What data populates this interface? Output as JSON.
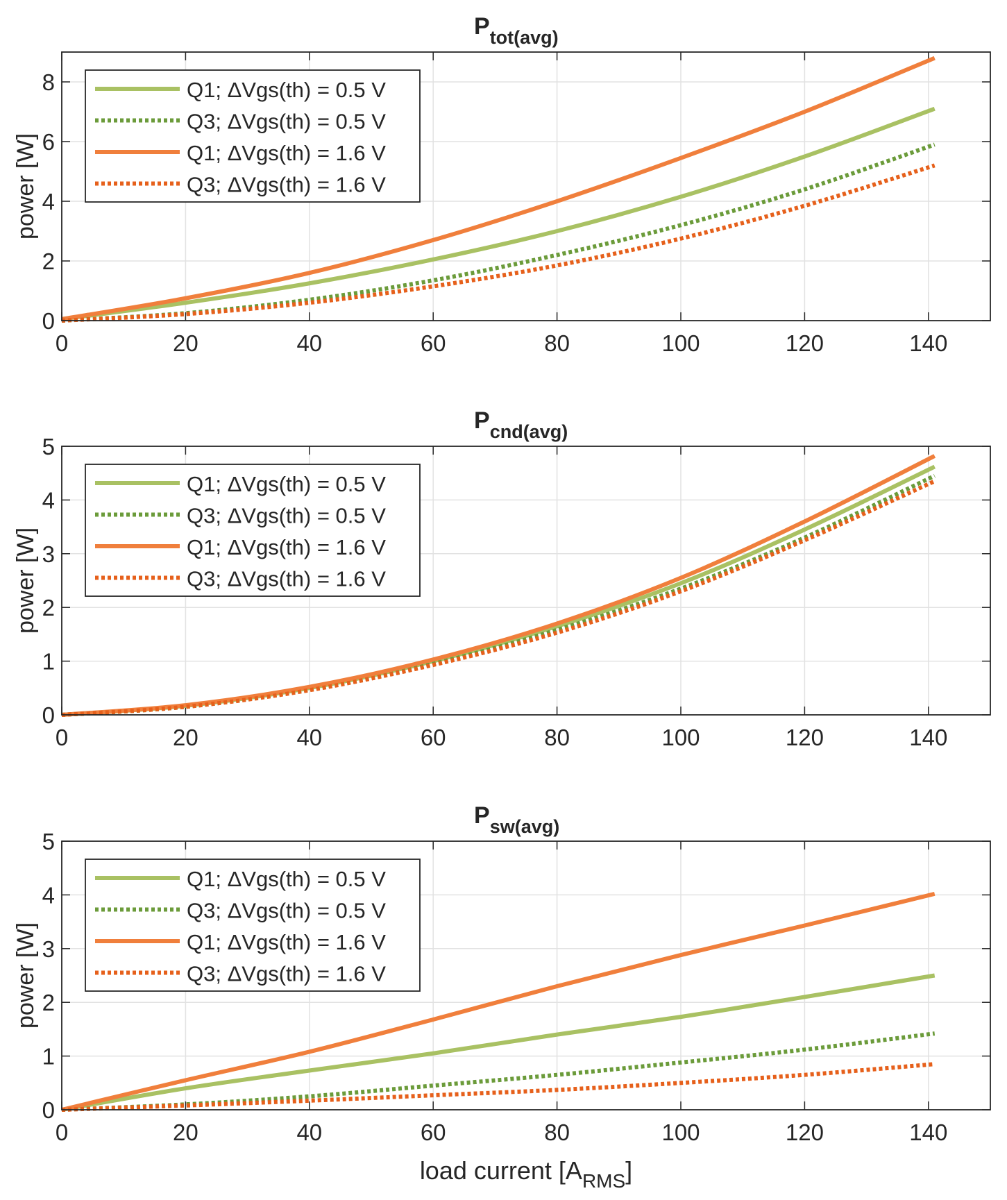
{
  "colors": {
    "q1_05": "#a9c163",
    "q3_05": "#6b9b3a",
    "q1_16": "#f07f3c",
    "q3_16": "#e6601b"
  },
  "chart_data": [
    {
      "type": "line",
      "title": "P",
      "title_sub": "tot(avg)",
      "ylabel": "power [W]",
      "xlabel": "",
      "xlim": [
        0,
        150
      ],
      "ylim": [
        0,
        9
      ],
      "xticks": [
        0,
        20,
        40,
        60,
        80,
        100,
        120,
        140
      ],
      "yticks": [
        0,
        2,
        4,
        6,
        8
      ],
      "grid": true,
      "legend": "top-left",
      "x": [
        0,
        20,
        40,
        60,
        80,
        100,
        120,
        141
      ],
      "series": [
        {
          "name": "Q1; ΔVgs(th) = 0.5 V",
          "style": "solid",
          "color_key": "q1_05",
          "values": [
            0.05,
            0.6,
            1.25,
            2.05,
            3.0,
            4.15,
            5.5,
            7.1
          ]
        },
        {
          "name": "Q3; ΔVgs(th) = 0.5 V",
          "style": "dotted",
          "color_key": "q3_05",
          "values": [
            0,
            0.25,
            0.7,
            1.35,
            2.2,
            3.2,
            4.4,
            5.9
          ]
        },
        {
          "name": "Q1; ΔVgs(th) = 1.6 V",
          "style": "solid",
          "color_key": "q1_16",
          "values": [
            0.05,
            0.75,
            1.6,
            2.7,
            4.0,
            5.45,
            7.0,
            8.8
          ]
        },
        {
          "name": "Q3; ΔVgs(th) = 1.6 V",
          "style": "dotted",
          "color_key": "q3_16",
          "values": [
            0,
            0.22,
            0.6,
            1.15,
            1.85,
            2.75,
            3.85,
            5.2
          ]
        }
      ]
    },
    {
      "type": "line",
      "title": "P",
      "title_sub": "cnd(avg)",
      "ylabel": "power [W]",
      "xlabel": "",
      "xlim": [
        0,
        150
      ],
      "ylim": [
        0,
        5
      ],
      "xticks": [
        0,
        20,
        40,
        60,
        80,
        100,
        120,
        140
      ],
      "yticks": [
        0,
        1,
        2,
        3,
        4,
        5
      ],
      "grid": true,
      "legend": "top-left",
      "x": [
        0,
        20,
        40,
        60,
        80,
        100,
        120,
        141
      ],
      "series": [
        {
          "name": "Q1; ΔVgs(th) = 0.5 V",
          "style": "solid",
          "color_key": "q1_05",
          "values": [
            0,
            0.17,
            0.5,
            1.0,
            1.65,
            2.45,
            3.45,
            4.62
          ]
        },
        {
          "name": "Q3; ΔVgs(th) = 0.5 V",
          "style": "dotted",
          "color_key": "q3_05",
          "values": [
            0,
            0.15,
            0.47,
            0.95,
            1.58,
            2.35,
            3.3,
            4.45
          ]
        },
        {
          "name": "Q1; ΔVgs(th) = 1.6 V",
          "style": "solid",
          "color_key": "q1_16",
          "values": [
            0,
            0.18,
            0.52,
            1.03,
            1.7,
            2.55,
            3.6,
            4.82
          ]
        },
        {
          "name": "Q3; ΔVgs(th) = 1.6 V",
          "style": "dotted",
          "color_key": "q3_16",
          "values": [
            0,
            0.15,
            0.46,
            0.93,
            1.53,
            2.3,
            3.25,
            4.35
          ]
        }
      ]
    },
    {
      "type": "line",
      "title": "P",
      "title_sub": "sw(avg)",
      "ylabel": "power [W]",
      "xlabel": "load current [A",
      "xlabel_sub": "RMS",
      "xlabel_end": "]",
      "xlim": [
        0,
        150
      ],
      "ylim": [
        0,
        5
      ],
      "xticks": [
        0,
        20,
        40,
        60,
        80,
        100,
        120,
        140
      ],
      "yticks": [
        0,
        1,
        2,
        3,
        4,
        5
      ],
      "grid": true,
      "legend": "top-left",
      "x": [
        0,
        20,
        40,
        60,
        80,
        100,
        120,
        141
      ],
      "series": [
        {
          "name": "Q1; ΔVgs(th) = 0.5 V",
          "style": "solid",
          "color_key": "q1_05",
          "values": [
            0,
            0.4,
            0.73,
            1.05,
            1.4,
            1.73,
            2.1,
            2.5
          ]
        },
        {
          "name": "Q3; ΔVgs(th) = 0.5 V",
          "style": "dotted",
          "color_key": "q3_05",
          "values": [
            0,
            0.1,
            0.25,
            0.45,
            0.65,
            0.88,
            1.12,
            1.42
          ]
        },
        {
          "name": "Q1; ΔVgs(th) = 1.6 V",
          "style": "solid",
          "color_key": "q1_16",
          "values": [
            0,
            0.55,
            1.08,
            1.68,
            2.3,
            2.88,
            3.43,
            4.02
          ]
        },
        {
          "name": "Q3; ΔVgs(th) = 1.6 V",
          "style": "dotted",
          "color_key": "q3_16",
          "values": [
            0,
            0.08,
            0.17,
            0.27,
            0.37,
            0.5,
            0.65,
            0.85
          ]
        }
      ]
    }
  ]
}
